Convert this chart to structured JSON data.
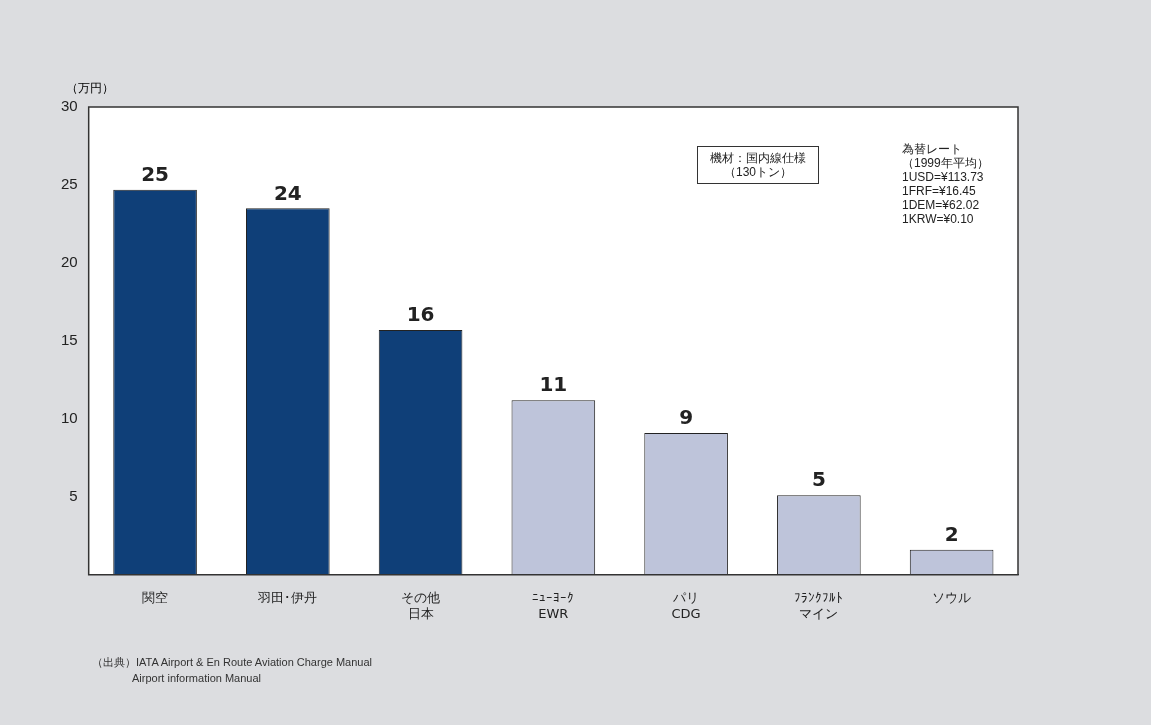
{
  "chart_data": {
    "type": "bar",
    "ylabel": "（万円）",
    "categories": [
      "関空",
      "羽田･伊丹",
      "その他日本",
      "ﾆｭｰﾖｰｸ\nEWR",
      "パリ\nCDG",
      "ﾌﾗﾝｸﾌﾙﾄマイン",
      "ソウル"
    ],
    "values": [
      24.7,
      23.5,
      15.7,
      11.2,
      9.1,
      5.1,
      1.6
    ],
    "colors": [
      "#0f3f78",
      "#0f3f78",
      "#0f3f78",
      "#bec4da",
      "#bec4da",
      "#bec4da",
      "#bec4da"
    ],
    "value_labels": [
      "25",
      "24",
      "16",
      "11",
      "9",
      "5",
      "2"
    ],
    "ylim": [
      0,
      30
    ],
    "yticks": [
      5,
      10,
      15,
      20,
      25,
      30
    ],
    "annotations": [
      "機材：国内線仕様（130トン）",
      "為替レート（1999年平均）\n1USD=¥113.73\n1FRF=¥16.45\n1DEM=¥62.02\n1KRW=¥0.10",
      "（出典）IATA Airport & En Route Aviation Charge Manual\nAirport information Manual"
    ]
  }
}
